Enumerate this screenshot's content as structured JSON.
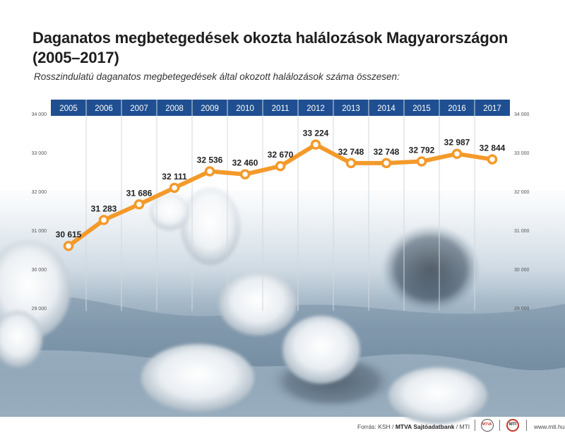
{
  "title": "Daganatos megbetegedések okozta halálozások Magyarországon (2005–2017)",
  "subtitle": "Rosszindulatú daganatos megbetegedések által okozott halálozások száma összesen:",
  "footer": {
    "source_prefix": "Forrás: KSH / ",
    "source_agency": "MTVA Sajtóadatbank",
    "source_suffix": " / MTI",
    "website": "www.mti.hu",
    "logo_left_text": "MTVA",
    "logo_right_text": "MTI"
  },
  "colors": {
    "header_band": "#1f4f91",
    "line": "#f39a2a",
    "marker_fill": "#ffffff",
    "text": "#222222"
  },
  "chart_data": {
    "type": "line",
    "title": "",
    "xlabel": "",
    "ylabel": "",
    "x": [
      "2005",
      "2006",
      "2007",
      "2008",
      "2009",
      "2010",
      "2011",
      "2012",
      "2013",
      "2014",
      "2015",
      "2016",
      "2017"
    ],
    "series": [
      {
        "values": [
          30615,
          31283,
          31686,
          32111,
          32536,
          32460,
          32670,
          33224,
          32748,
          32748,
          32792,
          32987,
          32844
        ]
      }
    ],
    "data_labels": [
      "30 615",
      "31 283",
      "31 686",
      "32 111",
      "32 536",
      "32 460",
      "32 670",
      "33 224",
      "32 748",
      "32 748",
      "32 792",
      "32 987",
      "32 844"
    ],
    "y_tick_labels": [
      "34 000",
      "33 000",
      "32 000",
      "31 000",
      "30 000",
      "29 000"
    ],
    "y_ticks": [
      34000,
      33000,
      32000,
      31000,
      30000,
      29000
    ],
    "ylim": [
      29000,
      34000
    ],
    "grid": true,
    "legend": "none",
    "axis_position": "top",
    "y_axis_sides": "both"
  }
}
